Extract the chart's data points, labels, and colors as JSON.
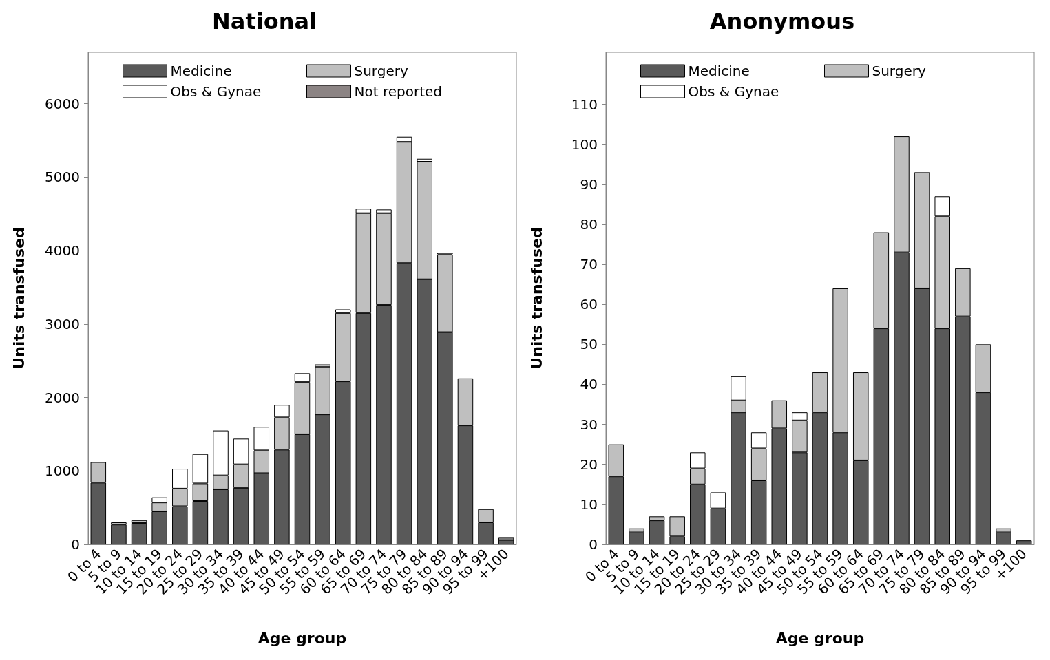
{
  "chart_data": [
    {
      "type": "bar",
      "title": "National",
      "xlabel": "Age group",
      "ylabel": "Units transfused",
      "stacked": true,
      "legend": "top",
      "grid": false,
      "categories": [
        "0 to 4",
        "5 to 9",
        "10 to 14",
        "15 to 19",
        "20 to 24",
        "25 to 29",
        "30 to 34",
        "35 to 39",
        "40 to 44",
        "45 to 49",
        "50 to 54",
        "55 to 59",
        "60 to 64",
        "65 to 69",
        "70 to 74",
        "75 to 79",
        "80 to 84",
        "85 to 89",
        "90 to 94",
        "95 to 99",
        "+100"
      ],
      "ylim": [
        0,
        6700
      ],
      "yticks": [
        0,
        1000,
        2000,
        3000,
        4000,
        5000,
        6000
      ],
      "series": [
        {
          "name": "Medicine",
          "color": "#595959",
          "values": [
            840,
            270,
            290,
            450,
            520,
            590,
            750,
            770,
            970,
            1290,
            1500,
            1770,
            2220,
            3150,
            3260,
            3830,
            3610,
            2890,
            1620,
            300,
            60
          ]
        },
        {
          "name": "Surgery",
          "color": "#bfbfbf",
          "values": [
            280,
            30,
            40,
            120,
            240,
            240,
            190,
            320,
            310,
            440,
            710,
            650,
            930,
            1360,
            1250,
            1650,
            1600,
            1060,
            640,
            180,
            30
          ]
        },
        {
          "name": "Obs & Gynae",
          "color": "#ffffff",
          "values": [
            0,
            0,
            0,
            70,
            270,
            400,
            610,
            350,
            320,
            170,
            120,
            30,
            50,
            60,
            50,
            70,
            40,
            20,
            null,
            0,
            0
          ]
        },
        {
          "name": "Not reported",
          "color": "#8c8484",
          "values": [
            0,
            0,
            0,
            0,
            0,
            0,
            0,
            0,
            0,
            0,
            0,
            0,
            0,
            0,
            0,
            0,
            0,
            0,
            0,
            0,
            0
          ]
        }
      ]
    },
    {
      "type": "bar",
      "title": "Anonymous",
      "xlabel": "Age group",
      "ylabel": "Units transfused",
      "stacked": true,
      "legend": "top",
      "grid": false,
      "categories": [
        "0 to 4",
        "5 to 9",
        "10 to 14",
        "15 to 19",
        "20 to 24",
        "25 to 29",
        "30 to 34",
        "35 to 39",
        "40 to 44",
        "45 to 49",
        "50 to 54",
        "55 to 59",
        "60 to 64",
        "65 to 69",
        "70 to 74",
        "75 to 79",
        "80 to 84",
        "85 to 89",
        "90 to 94",
        "95 to 99",
        "+100"
      ],
      "ylim": [
        0,
        123
      ],
      "yticks": [
        0,
        10,
        20,
        30,
        40,
        50,
        60,
        70,
        80,
        90,
        100,
        110
      ],
      "series": [
        {
          "name": "Medicine",
          "color": "#595959",
          "values": [
            17,
            3,
            6,
            2,
            15,
            9,
            33,
            16,
            29,
            23,
            33,
            28,
            21,
            54,
            73,
            64,
            54,
            57,
            38,
            3,
            1
          ]
        },
        {
          "name": "Surgery",
          "color": "#bfbfbf",
          "values": [
            8,
            1,
            1,
            5,
            4,
            0,
            3,
            8,
            7,
            8,
            10,
            36,
            22,
            24,
            29,
            29,
            28,
            12,
            12,
            1,
            0
          ]
        },
        {
          "name": "Obs & Gynae",
          "color": "#ffffff",
          "values": [
            0,
            0,
            0,
            0,
            4,
            4,
            6,
            4,
            0,
            2,
            0,
            0,
            0,
            0,
            0,
            0,
            5,
            0,
            0,
            0,
            0
          ]
        }
      ]
    }
  ]
}
